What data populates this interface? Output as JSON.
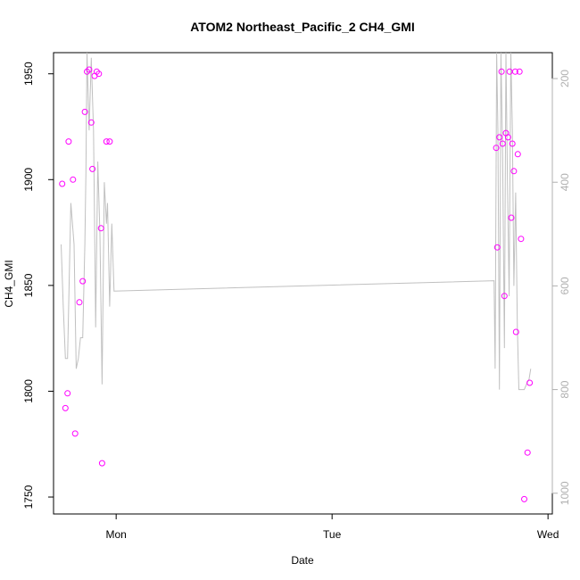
{
  "chart_data": {
    "type": "line",
    "title": "ATOM2 Northeast_Pacific_2 CH4_GMI",
    "xlabel": "Date",
    "ylabel": "CH4_GMI",
    "xlim": [
      -0.29,
      2.02
    ],
    "x_ticks": [
      {
        "value": 0,
        "label": "Mon"
      },
      {
        "value": 1,
        "label": "Tue"
      },
      {
        "value": 2,
        "label": "Wed"
      }
    ],
    "ylim": [
      1742,
      1960
    ],
    "y_ticks": [
      1750,
      1800,
      1850,
      1900,
      1950
    ],
    "right_axis": {
      "label": "",
      "reversed": true,
      "ylim": [
        1040,
        150
      ],
      "ticks": [
        200,
        400,
        600,
        800,
        1000
      ]
    },
    "grid": false,
    "legend": "none",
    "series": [
      {
        "style": "line",
        "axis": "right",
        "color": "#c0c0c0",
        "x": [
          -0.255,
          -0.245,
          -0.235,
          -0.225,
          -0.21,
          -0.195,
          -0.185,
          -0.175,
          -0.165,
          -0.155,
          -0.145,
          -0.14,
          -0.135,
          -0.125,
          -0.115,
          -0.105,
          -0.1,
          -0.095,
          -0.085,
          -0.075,
          -0.065,
          -0.055,
          -0.05,
          -0.045,
          -0.04,
          -0.03,
          -0.02,
          -0.01,
          1.75,
          1.755,
          1.762,
          1.768,
          1.775,
          1.782,
          1.79,
          1.798,
          1.805,
          1.812,
          1.82,
          1.828,
          1.835,
          1.842,
          1.85,
          1.858,
          1.865,
          1.872,
          1.88,
          1.89,
          1.9,
          1.912,
          1.92
        ],
        "y": [
          520,
          640,
          740,
          740,
          440,
          520,
          760,
          740,
          700,
          700,
          520,
          380,
          150,
          300,
          160,
          300,
          480,
          680,
          360,
          500,
          790,
          400,
          440,
          480,
          440,
          640,
          480,
          610,
          590,
          760,
          150,
          300,
          800,
          150,
          350,
          720,
          150,
          400,
          620,
          150,
          300,
          600,
          420,
          680,
          800,
          800,
          800,
          800,
          790,
          780,
          760
        ]
      },
      {
        "style": "points",
        "axis": "left",
        "color": "#ff00ff",
        "x": [
          -0.25,
          -0.235,
          -0.225,
          -0.22,
          -0.2,
          -0.19,
          -0.17,
          -0.155,
          -0.145,
          -0.135,
          -0.125,
          -0.115,
          -0.11,
          -0.1,
          -0.09,
          -0.08,
          -0.07,
          -0.065,
          -0.045,
          -0.03,
          1.76,
          1.765,
          1.775,
          1.785,
          1.79,
          1.798,
          1.805,
          1.815,
          1.822,
          1.83,
          1.835,
          1.842,
          1.848,
          1.852,
          1.86,
          1.868,
          1.875,
          1.89,
          1.905,
          1.915
        ],
        "y": [
          1898,
          1792,
          1799,
          1918,
          1900,
          1780,
          1842,
          1852,
          1932,
          1951,
          1952,
          1927,
          1905,
          1949,
          1951,
          1950,
          1877,
          1766,
          1918,
          1918,
          1915,
          1868,
          1920,
          1951,
          1917,
          1845,
          1922,
          1920,
          1951,
          1882,
          1917,
          1904,
          1951,
          1828,
          1912,
          1951,
          1872,
          1749,
          1771,
          1804
        ]
      }
    ]
  }
}
